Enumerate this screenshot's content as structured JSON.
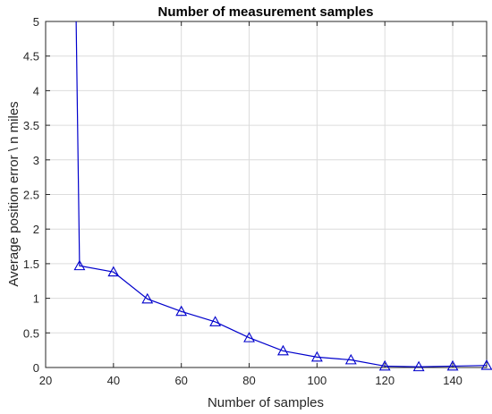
{
  "chart_data": {
    "type": "line",
    "title": "Number of measurement samples",
    "xlabel": "Number of samples",
    "ylabel": "Average position error \\ n miles",
    "xlim": [
      20,
      150
    ],
    "ylim": [
      0,
      5
    ],
    "xticks": [
      20,
      40,
      60,
      80,
      100,
      120,
      140
    ],
    "yticks": [
      0,
      0.5,
      1,
      1.5,
      2,
      2.5,
      3,
      3.5,
      4,
      4.5,
      5
    ],
    "xtick_labels": [
      "20",
      "40",
      "60",
      "80",
      "100",
      "120",
      "140"
    ],
    "ytick_labels": [
      "0",
      "0.5",
      "1",
      "1.5",
      "2",
      "2.5",
      "3",
      "3.5",
      "4",
      "4.5",
      "5"
    ],
    "grid": true,
    "series": [
      {
        "color": "#0000cc",
        "marker": "triangle-open",
        "line_start": [
          29,
          5.0
        ],
        "x": [
          30,
          40,
          50,
          60,
          70,
          80,
          90,
          100,
          110,
          120,
          130,
          140,
          150
        ],
        "values": [
          1.47,
          1.38,
          0.99,
          0.81,
          0.66,
          0.43,
          0.24,
          0.15,
          0.11,
          0.02,
          0.01,
          0.02,
          0.03
        ]
      }
    ]
  }
}
